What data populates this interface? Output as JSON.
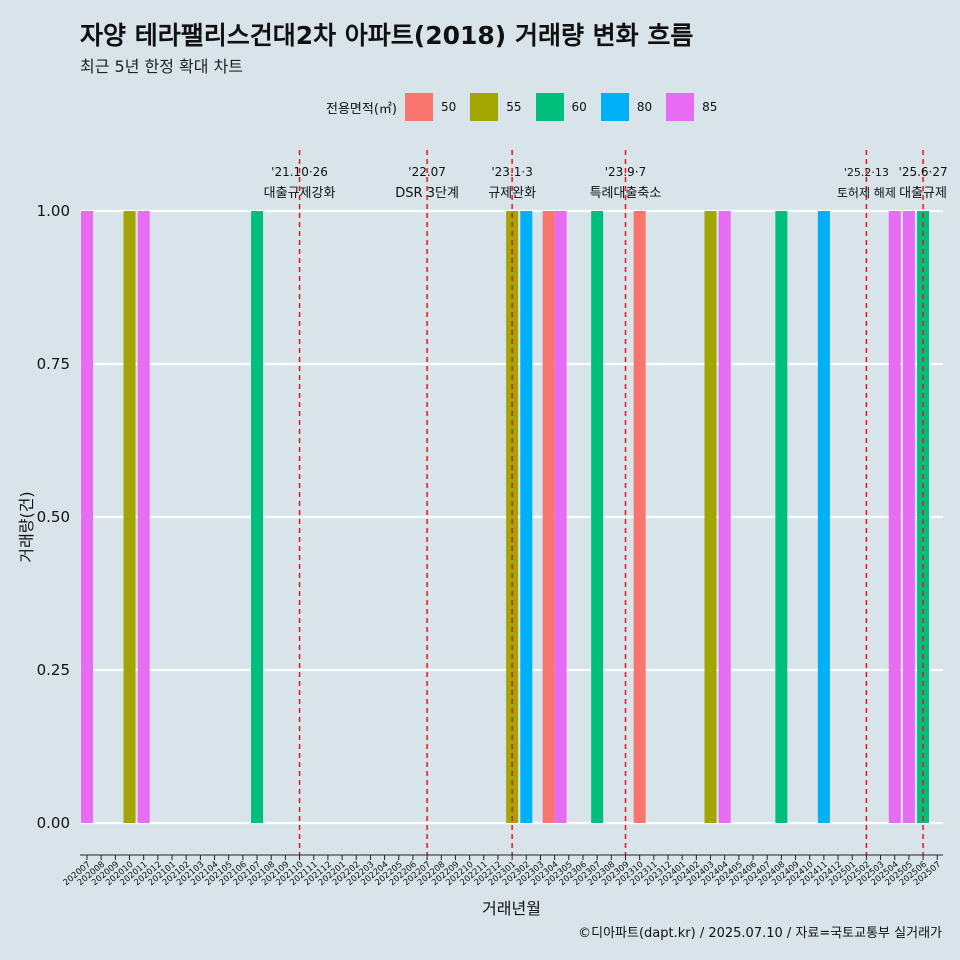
{
  "header": {
    "title": "자양 테라팰리스건대2차 아파트(2018) 거래량 변화 흐름",
    "subtitle": "최근 5년 한정 확대 차트"
  },
  "footer": {
    "caption": "©디아파트(dapt.kr) / 2025.07.10 / 자료=국토교통부 실거래가"
  },
  "chart_data": {
    "type": "bar",
    "xlabel": "거래년월",
    "ylabel": "거래량(건)",
    "ylim": [
      0,
      1
    ],
    "yticks": [
      "0.00",
      "0.25",
      "0.50",
      "0.75",
      "1.00"
    ],
    "legend": {
      "title": "전용면적(㎡)",
      "position": "top",
      "entries": [
        {
          "name": "50",
          "color": "#F8766D"
        },
        {
          "name": "55",
          "color": "#A3A500"
        },
        {
          "name": "60",
          "color": "#00BF7D"
        },
        {
          "name": "80",
          "color": "#00B0F6"
        },
        {
          "name": "85",
          "color": "#E76BF3"
        }
      ]
    },
    "categories": [
      "202007",
      "202008",
      "202009",
      "202010",
      "202011",
      "202012",
      "202101",
      "202102",
      "202103",
      "202104",
      "202105",
      "202106",
      "202107",
      "202108",
      "202109",
      "202110",
      "202111",
      "202112",
      "202201",
      "202202",
      "202203",
      "202204",
      "202205",
      "202206",
      "202207",
      "202208",
      "202209",
      "202210",
      "202211",
      "202212",
      "202301",
      "202302",
      "202303",
      "202304",
      "202305",
      "202306",
      "202307",
      "202308",
      "202309",
      "202310",
      "202311",
      "202312",
      "202401",
      "202402",
      "202403",
      "202404",
      "202405",
      "202406",
      "202407",
      "202408",
      "202409",
      "202410",
      "202411",
      "202412",
      "202501",
      "202502",
      "202503",
      "202504",
      "202505",
      "202506",
      "202507"
    ],
    "bars": [
      {
        "month": "202007",
        "area": "85",
        "value": 1
      },
      {
        "month": "202010",
        "area": "55",
        "value": 1
      },
      {
        "month": "202011",
        "area": "85",
        "value": 1
      },
      {
        "month": "202107",
        "area": "60",
        "value": 1
      },
      {
        "month": "202301",
        "area": "55",
        "value": 1
      },
      {
        "month": "202302",
        "area": "80",
        "value": 1
      },
      {
        "month": "202304",
        "area": "50",
        "value": 1
      },
      {
        "month": "202304",
        "area": "85",
        "value": 1
      },
      {
        "month": "202307",
        "area": "60",
        "value": 1
      },
      {
        "month": "202310",
        "area": "50",
        "value": 1
      },
      {
        "month": "202403",
        "area": "55",
        "value": 1
      },
      {
        "month": "202404",
        "area": "85",
        "value": 1
      },
      {
        "month": "202408",
        "area": "60",
        "value": 1
      },
      {
        "month": "202411",
        "area": "80",
        "value": 1
      },
      {
        "month": "202504",
        "area": "85",
        "value": 1
      },
      {
        "month": "202505",
        "area": "85",
        "value": 1
      },
      {
        "month": "202506",
        "area": "60",
        "value": 1
      }
    ],
    "events": [
      {
        "month": "202110",
        "label1": "'21.10·26",
        "label2": "대출규제강화"
      },
      {
        "month": "202207",
        "label1": "'22.07",
        "label2": "DSR 3단계"
      },
      {
        "month": "202301",
        "label1": "'23.1·3",
        "label2": "규제완화"
      },
      {
        "month": "202309",
        "label1": "'23.9·7",
        "label2": "특례대출축소"
      },
      {
        "month": "202502",
        "label1": "'25.2·13",
        "label2": "토허제 해제"
      },
      {
        "month": "202506",
        "label1": "'25.6·27",
        "label2": "대출규제"
      }
    ]
  }
}
